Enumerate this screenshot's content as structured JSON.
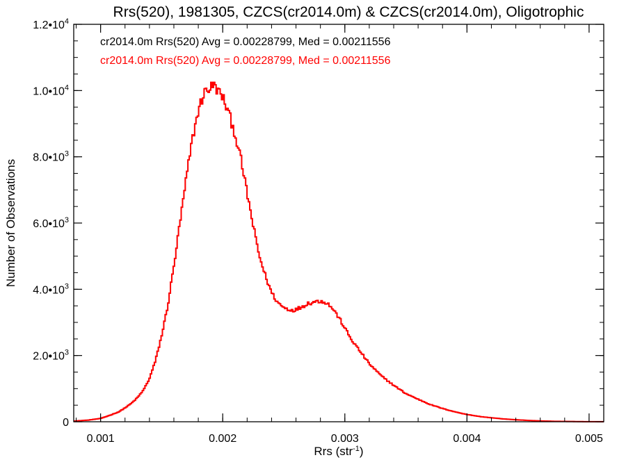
{
  "colors": {
    "series_black": "#000000",
    "series_red": "#ff0000",
    "axes": "#000000",
    "background": "#ffffff"
  },
  "chart_data": {
    "type": "line",
    "title": "Rrs(520), 1981305, CZCS(cr2014.0m) & CZCS(cr2014.0m), Oligotrophic",
    "xlabel": {
      "base": "Rrs (str",
      "sup": "-1",
      "tail": ")"
    },
    "ylabel": "Number of Observations",
    "xlim": [
      0.00078,
      0.00512
    ],
    "ylim": [
      0,
      12000
    ],
    "grid": false,
    "legend_position": "top-left",
    "x_ticks": [
      {
        "value": 0.001,
        "label": "0.001"
      },
      {
        "value": 0.002,
        "label": "0.002"
      },
      {
        "value": 0.003,
        "label": "0.003"
      },
      {
        "value": 0.004,
        "label": "0.004"
      },
      {
        "value": 0.005,
        "label": "0.005"
      }
    ],
    "y_ticks": [
      {
        "value": 0,
        "mant": "0",
        "exp": ""
      },
      {
        "value": 2000,
        "mant": "2.0•10",
        "exp": "3"
      },
      {
        "value": 4000,
        "mant": "4.0•10",
        "exp": "3"
      },
      {
        "value": 6000,
        "mant": "6.0•10",
        "exp": "3"
      },
      {
        "value": 8000,
        "mant": "8.0•10",
        "exp": "3"
      },
      {
        "value": 10000,
        "mant": "1.0•10",
        "exp": "4"
      },
      {
        "value": 12000,
        "mant": "1.2•10",
        "exp": "4"
      }
    ],
    "annotations": [
      {
        "text": "cr2014.0m Rrs(520) Avg = 0.00228799, Med = 0.00211556",
        "color": "#000000"
      },
      {
        "text": "cr2014.0m Rrs(520) Avg = 0.00228799, Med = 0.00211556",
        "color": "#ff0000"
      }
    ],
    "series": [
      {
        "color": "#000000",
        "x": [
          0.00078,
          0.0009,
          0.001,
          0.00108,
          0.00115,
          0.0012,
          0.00125,
          0.0013,
          0.00135,
          0.0014,
          0.00145,
          0.0015,
          0.00155,
          0.0016,
          0.00165,
          0.0017,
          0.00175,
          0.0018,
          0.00185,
          0.0019,
          0.00193,
          0.00196,
          0.002,
          0.00205,
          0.0021,
          0.00215,
          0.0022,
          0.00225,
          0.0023,
          0.00235,
          0.0024,
          0.00245,
          0.0025,
          0.00255,
          0.0026,
          0.00265,
          0.0027,
          0.00275,
          0.0028,
          0.00285,
          0.0029,
          0.00295,
          0.003,
          0.00305,
          0.0031,
          0.00315,
          0.0032,
          0.0033,
          0.0034,
          0.0035,
          0.0036,
          0.0037,
          0.0038,
          0.0039,
          0.004,
          0.0041,
          0.0042,
          0.0043,
          0.0044,
          0.0045,
          0.0046,
          0.0047,
          0.0048,
          0.0049,
          0.005,
          0.00512
        ],
        "y": [
          20,
          50,
          100,
          200,
          300,
          420,
          550,
          720,
          950,
          1300,
          1850,
          2600,
          3500,
          4700,
          6000,
          7300,
          8500,
          9400,
          9950,
          10100,
          10150,
          10000,
          9800,
          9300,
          8700,
          7900,
          6900,
          5900,
          5000,
          4400,
          3900,
          3600,
          3450,
          3380,
          3380,
          3480,
          3580,
          3620,
          3650,
          3600,
          3420,
          3150,
          2830,
          2500,
          2250,
          2000,
          1750,
          1380,
          1100,
          850,
          680,
          520,
          400,
          300,
          220,
          160,
          120,
          85,
          60,
          40,
          25,
          15,
          10,
          5,
          3,
          2
        ]
      },
      {
        "color": "#ff0000",
        "x": [
          0.00078,
          0.0009,
          0.001,
          0.00108,
          0.00115,
          0.0012,
          0.00125,
          0.0013,
          0.00135,
          0.0014,
          0.00145,
          0.0015,
          0.00155,
          0.0016,
          0.00165,
          0.0017,
          0.00175,
          0.0018,
          0.00185,
          0.0019,
          0.00193,
          0.00196,
          0.002,
          0.00205,
          0.0021,
          0.00215,
          0.0022,
          0.00225,
          0.0023,
          0.00235,
          0.0024,
          0.00245,
          0.0025,
          0.00255,
          0.0026,
          0.00265,
          0.0027,
          0.00275,
          0.0028,
          0.00285,
          0.0029,
          0.00295,
          0.003,
          0.00305,
          0.0031,
          0.00315,
          0.0032,
          0.0033,
          0.0034,
          0.0035,
          0.0036,
          0.0037,
          0.0038,
          0.0039,
          0.004,
          0.0041,
          0.0042,
          0.0043,
          0.0044,
          0.0045,
          0.0046,
          0.0047,
          0.0048,
          0.0049,
          0.005,
          0.00512
        ],
        "y": [
          20,
          50,
          100,
          200,
          300,
          420,
          550,
          720,
          950,
          1300,
          1850,
          2600,
          3500,
          4700,
          6000,
          7300,
          8500,
          9400,
          9950,
          10100,
          10150,
          10000,
          9800,
          9300,
          8700,
          7900,
          6900,
          5900,
          5000,
          4400,
          3900,
          3600,
          3450,
          3380,
          3380,
          3480,
          3580,
          3620,
          3650,
          3600,
          3420,
          3150,
          2830,
          2500,
          2250,
          2000,
          1750,
          1380,
          1100,
          850,
          680,
          520,
          400,
          300,
          220,
          160,
          120,
          85,
          60,
          40,
          25,
          15,
          10,
          5,
          3,
          2
        ]
      }
    ]
  }
}
